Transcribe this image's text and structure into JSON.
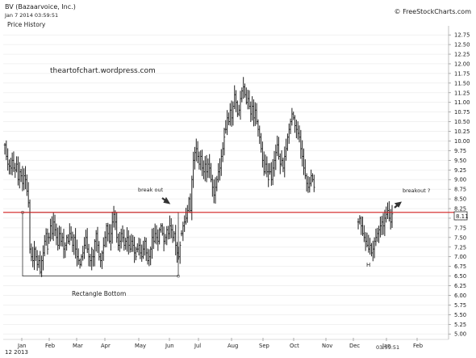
{
  "header": {
    "title": "BV (Bazaarvoice, Inc.)",
    "timestamp": "Jan 7 2014 03:59:51",
    "subtitle": "Price History",
    "watermark": "© FreeStockCharts.com"
  },
  "colors": {
    "bars": "#222222",
    "resistance": "#d21f1f",
    "box": "#333333",
    "grid": "#e9e9e9"
  },
  "chart_data": {
    "type": "bar",
    "ylim": [
      4.9,
      12.9
    ],
    "yticks": [
      "12.75",
      "12.50",
      "12.25",
      "12.00",
      "11.75",
      "11.50",
      "11.25",
      "11.00",
      "10.75",
      "10.50",
      "10.25",
      "10.00",
      "9.75",
      "9.50",
      "9.25",
      "9.00",
      "8.75",
      "8.50",
      "8.25",
      "8.00",
      "7.75",
      "7.50",
      "7.25",
      "7.00",
      "6.75",
      "6.50",
      "6.25",
      "6.00",
      "5.75",
      "5.50",
      "5.25",
      "5.00"
    ],
    "xticks": [
      "Jan",
      "Feb",
      "Mar",
      "Apr",
      "May",
      "Jun",
      "Jul",
      "Aug",
      "Sep",
      "Oct",
      "Nov",
      "Dec",
      "Jan",
      "Feb"
    ],
    "year_label": "12 2013",
    "time_label": "03:59:51",
    "last_price": "8.11",
    "resistance": 8.15,
    "rectangle": {
      "top": 8.15,
      "bottom": 6.5
    },
    "annotations": {
      "site": "theartofchart.wordpress.com",
      "breakout": "break out",
      "breakout_q": "breakout ?",
      "rect_label": "Rectangle Bottom",
      "h_label": "H"
    },
    "series": [
      {
        "start_day": 0,
        "values": [
          9.9,
          9.6,
          9.4,
          9.35,
          9.3,
          9.5,
          9.3,
          9.25,
          9.4,
          9.0,
          9.2,
          9.1,
          8.9,
          9.1,
          9.0,
          8.7,
          8.4,
          7.2,
          7.0,
          6.9,
          7.2,
          7.0,
          6.8,
          6.9,
          6.6,
          6.9,
          7.1,
          7.4,
          7.6,
          7.2
        ]
      },
      {
        "start_day": 30,
        "values": [
          7.5,
          7.8,
          7.6,
          7.9,
          7.7,
          7.5,
          7.3,
          7.6,
          7.4,
          7.5,
          7.2,
          7.3,
          7.5,
          7.4,
          7.6,
          7.5,
          7.3,
          7.5,
          7.2,
          7.0,
          6.9,
          6.8,
          7.0,
          7.1,
          7.3,
          7.5,
          7.2,
          7.0,
          6.9,
          7.2
        ]
      },
      {
        "start_day": 60,
        "values": [
          7.0,
          7.4,
          7.6,
          7.3,
          7.0,
          6.9,
          7.1,
          7.3,
          7.5,
          7.8,
          7.6,
          7.4,
          7.6,
          7.9,
          8.1,
          7.9,
          7.5,
          7.3,
          7.4,
          7.6,
          7.5,
          7.3,
          7.4,
          7.5,
          7.3,
          7.2,
          7.4,
          7.3,
          7.1,
          7.0
        ]
      },
      {
        "start_day": 90,
        "values": [
          7.2,
          7.3,
          7.1,
          7.0,
          7.2,
          7.4,
          7.1,
          6.9,
          7.0,
          7.2,
          7.5,
          7.4,
          7.6,
          7.5,
          7.4,
          7.7,
          7.8,
          7.6,
          7.4,
          7.5,
          7.7,
          7.6,
          7.8,
          7.7,
          7.5,
          7.6,
          7.3,
          7.1,
          7.0,
          7.3
        ]
      },
      {
        "start_day": 120,
        "values": [
          7.6,
          7.8,
          7.9,
          8.0,
          8.2,
          8.5,
          8.2,
          9.0,
          9.5,
          9.7,
          9.8,
          9.6,
          9.4,
          9.6,
          9.3,
          9.2,
          9.4,
          9.2,
          9.4,
          9.3,
          9.0,
          8.8,
          8.6,
          8.8,
          9.0,
          9.2,
          9.3,
          9.6,
          9.8,
          10.1
        ]
      },
      {
        "start_day": 150,
        "values": [
          10.3,
          10.6,
          10.5,
          10.8,
          10.6,
          10.9,
          11.2,
          11.0,
          10.7,
          10.8,
          11.1,
          11.3,
          11.4,
          11.2,
          11.0,
          11.1,
          10.9,
          10.7,
          10.9,
          10.6,
          10.8,
          10.5,
          10.3,
          10.1,
          9.8,
          9.5,
          9.2,
          9.4,
          9.2,
          9.0
        ]
      },
      {
        "start_day": 180,
        "values": [
          9.2,
          9.0,
          9.3,
          9.5,
          9.7,
          9.9,
          9.6,
          9.4,
          9.5,
          9.3,
          9.6,
          9.8,
          10.1,
          10.3,
          10.5,
          10.7,
          10.6,
          10.4,
          10.3,
          10.2,
          10.1,
          9.8,
          9.6,
          9.3,
          9.1,
          8.9,
          8.8,
          8.9,
          9.1,
          9.0,
          8.8
        ]
      },
      {
        "start_day": 240,
        "values": [
          7.9,
          8.0,
          7.8,
          7.6,
          7.5,
          7.4,
          7.3,
          7.2,
          7.3,
          7.1,
          7.2,
          7.4,
          7.5,
          7.6,
          7.7,
          7.8,
          7.9,
          7.8,
          8.0,
          8.1,
          8.2,
          8.0,
          7.9,
          8.11
        ]
      }
    ]
  }
}
